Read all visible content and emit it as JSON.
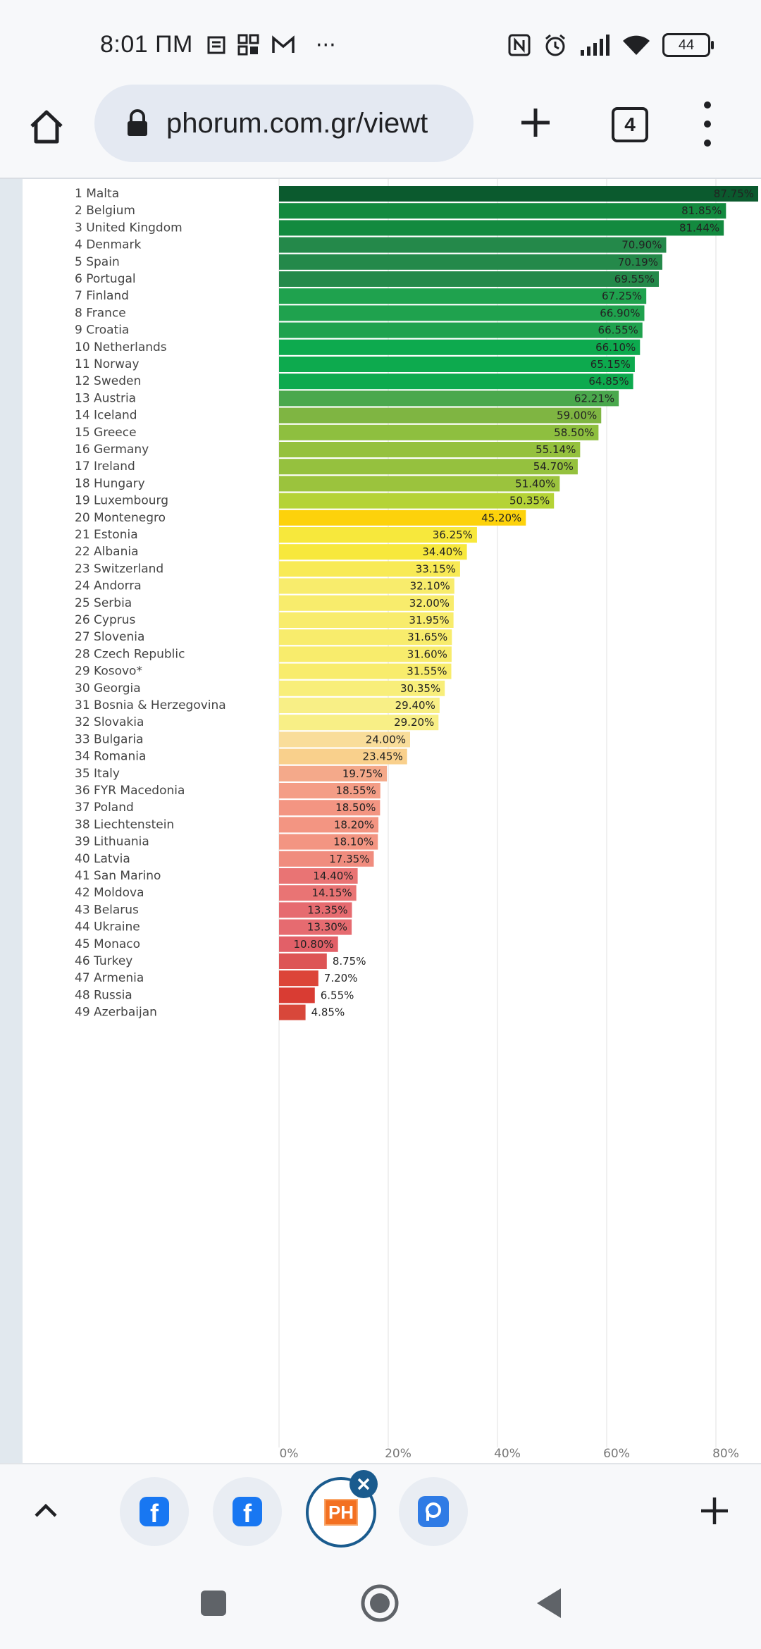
{
  "status_bar": {
    "time": "8:01 ПМ",
    "more": "···",
    "battery": "44",
    "icons": [
      "news-icon",
      "grid-icon",
      "gmail-icon",
      "nfc-icon",
      "alarm-icon",
      "signal-icon",
      "wifi-icon",
      "battery-icon"
    ]
  },
  "browser": {
    "url": "phorum.com.gr/viewt",
    "tab_count": "4"
  },
  "chart_data": {
    "type": "bar",
    "orientation": "horizontal",
    "categories": [
      "1 Malta",
      "2 Belgium",
      "3 United Kingdom",
      "4 Denmark",
      "5 Spain",
      "6 Portugal",
      "7 Finland",
      "8 France",
      "9 Croatia",
      "10 Netherlands",
      "11 Norway",
      "12 Sweden",
      "13 Austria",
      "14 Iceland",
      "15 Greece",
      "16 Germany",
      "17 Ireland",
      "18 Hungary",
      "19 Luxembourg",
      "20 Montenegro",
      "21 Estonia",
      "22 Albania",
      "23 Switzerland",
      "24 Andorra",
      "25 Serbia",
      "26 Cyprus",
      "27 Slovenia",
      "28 Czech Republic",
      "29 Kosovo*",
      "30 Georgia",
      "31 Bosnia & Herzegovina",
      "32 Slovakia",
      "33 Bulgaria",
      "34 Romania",
      "35 Italy",
      "36 FYR Macedonia",
      "37 Poland",
      "38 Liechtenstein",
      "39 Lithuania",
      "40 Latvia",
      "41 San Marino",
      "42 Moldova",
      "43 Belarus",
      "44 Ukraine",
      "45 Monaco",
      "46 Turkey",
      "47 Armenia",
      "48 Russia",
      "49 Azerbaijan"
    ],
    "values": [
      87.75,
      81.85,
      81.44,
      70.9,
      70.19,
      69.55,
      67.25,
      66.9,
      66.55,
      66.1,
      65.15,
      64.85,
      62.21,
      59.0,
      58.5,
      55.14,
      54.7,
      51.4,
      50.35,
      45.2,
      36.25,
      34.4,
      33.15,
      32.1,
      32.0,
      31.95,
      31.65,
      31.6,
      31.55,
      30.35,
      29.4,
      29.2,
      24.0,
      23.45,
      19.75,
      18.55,
      18.5,
      18.2,
      18.1,
      17.35,
      14.4,
      14.15,
      13.35,
      13.3,
      10.8,
      8.75,
      7.2,
      6.55,
      4.85
    ],
    "value_labels": [
      "87.75%",
      "81.85%",
      "81.44%",
      "70.90%",
      "70.19%",
      "69.55%",
      "67.25%",
      "66.90%",
      "66.55%",
      "66.10%",
      "65.15%",
      "64.85%",
      "62.21%",
      "59.00%",
      "58.50%",
      "55.14%",
      "54.70%",
      "51.40%",
      "50.35%",
      "45.20%",
      "36.25%",
      "34.40%",
      "33.15%",
      "32.10%",
      "32.00%",
      "31.95%",
      "31.65%",
      "31.60%",
      "31.55%",
      "30.35%",
      "29.40%",
      "29.20%",
      "24.00%",
      "23.45%",
      "19.75%",
      "18.55%",
      "18.50%",
      "18.20%",
      "18.10%",
      "17.35%",
      "14.40%",
      "14.15%",
      "13.35%",
      "13.30%",
      "10.80%",
      "8.75%",
      "7.20%",
      "6.55%",
      "4.85%"
    ],
    "colors": [
      "#0b5a2e",
      "#138a3f",
      "#138a3f",
      "#24894a",
      "#24894a",
      "#24894a",
      "#1fa24e",
      "#1fa24e",
      "#1fa24e",
      "#0daa4e",
      "#0daa4e",
      "#0daa4e",
      "#4aa84d",
      "#7fb542",
      "#8ebf3f",
      "#95c13e",
      "#95c13e",
      "#9bc33d",
      "#b5d336",
      "#fdd20b",
      "#f7e83c",
      "#f7e83c",
      "#f8ea55",
      "#f8ec6c",
      "#f8ec6c",
      "#f8ec6c",
      "#f8ec6c",
      "#f8ec6c",
      "#f8ec6c",
      "#f8ee7a",
      "#f8ef86",
      "#f8ef86",
      "#f9dd9a",
      "#f9d08c",
      "#f4a98a",
      "#f49d86",
      "#f39582",
      "#f39582",
      "#f39582",
      "#f08c7e",
      "#e97474",
      "#e97474",
      "#e66b70",
      "#e66b70",
      "#e26068",
      "#dd5455",
      "#dc4538",
      "#d93c33",
      "#d8473a"
    ],
    "x_ticks": [
      "0%",
      "20%",
      "40%",
      "60%",
      "80%"
    ],
    "xlim": [
      0,
      90
    ],
    "grid": true
  },
  "tab_strip": {
    "tabs": [
      "facebook-tab-icon",
      "facebook-tab-icon",
      "phorum-tab-icon",
      "pcloud-tab-icon"
    ],
    "fb_letter": "f",
    "ph_text": "PH"
  }
}
